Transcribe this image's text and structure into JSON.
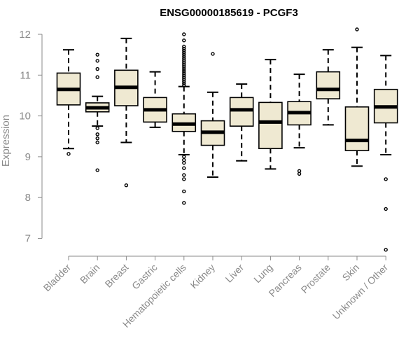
{
  "chart_data": {
    "type": "boxplot",
    "title": "ENSG00000185619 - PCGF3",
    "xlabel": "",
    "ylabel": "Expression",
    "ylim": [
      6.8,
      12.2
    ],
    "yticks": [
      7,
      8,
      9,
      10,
      11,
      12
    ],
    "box_fill": "#efe9d2",
    "axis_color": "#8a8a8a",
    "categories": [
      "Bladder",
      "Brain",
      "Breast",
      "Gastric",
      "Hematopoietic cells",
      "Kidney",
      "Liver",
      "Lung",
      "Pancreas",
      "Prostate",
      "Skin",
      "Unknown / Other"
    ],
    "boxes": [
      {
        "whisker_low": 9.2,
        "q1": 10.27,
        "median": 10.65,
        "q3": 11.05,
        "whisker_high": 11.62,
        "outliers": [
          9.07
        ]
      },
      {
        "whisker_low": 9.75,
        "q1": 10.1,
        "median": 10.2,
        "q3": 10.32,
        "whisker_high": 10.48,
        "outliers": [
          11.5,
          11.35,
          11.15,
          10.95,
          9.7,
          9.55,
          9.45,
          9.35,
          8.67
        ]
      },
      {
        "whisker_low": 9.35,
        "q1": 10.25,
        "median": 10.7,
        "q3": 11.12,
        "whisker_high": 11.9,
        "outliers": [
          8.3
        ]
      },
      {
        "whisker_low": 9.72,
        "q1": 9.85,
        "median": 10.15,
        "q3": 10.45,
        "whisker_high": 11.08,
        "outliers": []
      },
      {
        "whisker_low": 9.05,
        "q1": 9.62,
        "median": 9.8,
        "q3": 10.05,
        "whisker_high": 10.72,
        "outliers": [
          12.0,
          11.85,
          11.7,
          11.65,
          11.6,
          11.55,
          11.5,
          11.45,
          11.4,
          11.35,
          11.3,
          11.25,
          11.2,
          11.15,
          11.1,
          11.05,
          11.0,
          10.95,
          10.9,
          10.85,
          10.8,
          10.75,
          9.0,
          8.92,
          8.85,
          8.72,
          8.55,
          8.45,
          8.15,
          7.87
        ]
      },
      {
        "whisker_low": 8.5,
        "q1": 9.28,
        "median": 9.6,
        "q3": 9.88,
        "whisker_high": 10.58,
        "outliers": [
          11.52
        ]
      },
      {
        "whisker_low": 8.9,
        "q1": 9.75,
        "median": 10.15,
        "q3": 10.45,
        "whisker_high": 10.78,
        "outliers": []
      },
      {
        "whisker_low": 8.7,
        "q1": 9.2,
        "median": 9.85,
        "q3": 10.33,
        "whisker_high": 11.38,
        "outliers": []
      },
      {
        "whisker_low": 9.22,
        "q1": 9.78,
        "median": 10.08,
        "q3": 10.35,
        "whisker_high": 11.02,
        "outliers": [
          8.65,
          8.58
        ]
      },
      {
        "whisker_low": 9.78,
        "q1": 10.42,
        "median": 10.65,
        "q3": 11.08,
        "whisker_high": 11.62,
        "outliers": []
      },
      {
        "whisker_low": 8.77,
        "q1": 9.15,
        "median": 9.4,
        "q3": 10.22,
        "whisker_high": 11.68,
        "outliers": [
          12.12
        ]
      },
      {
        "whisker_low": 9.05,
        "q1": 9.83,
        "median": 10.22,
        "q3": 10.65,
        "whisker_high": 11.48,
        "outliers": [
          8.45,
          7.72,
          6.72
        ]
      }
    ]
  }
}
